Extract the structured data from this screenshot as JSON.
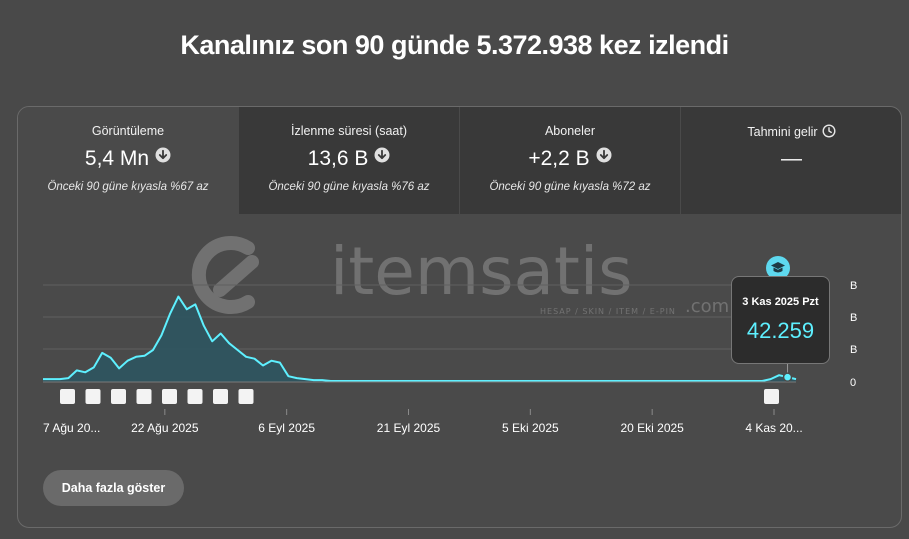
{
  "headline": "Kanalınız son 90 günde 5.372.938 kez izlendi",
  "tabs": [
    {
      "label": "Görüntüleme",
      "value": "5,4 Mn",
      "note": "Önceki 90 güne kıyasla %67 az",
      "trend_icon": "arrow-down-circle-icon"
    },
    {
      "label": "İzlenme süresi (saat)",
      "value": "13,6 B",
      "note": "Önceki 90 güne kıyasla %76 az",
      "trend_icon": "arrow-down-circle-icon"
    },
    {
      "label": "Aboneler",
      "value": "+2,2 B",
      "note": "Önceki 90 güne kıyasla %72 az",
      "trend_icon": "arrow-down-circle-icon"
    },
    {
      "label": "Tahmini gelir",
      "value": "—",
      "note": "",
      "trend_icon": "clock-icon"
    }
  ],
  "watermark": {
    "brand": "itemsatis",
    "tld": ".com",
    "tagline": "HESAP / SKIN / ITEM / E-PIN"
  },
  "tooltip": {
    "date": "3 Kas 2025 Pzt",
    "value": "42.259"
  },
  "more_button": "Daha fazla göster",
  "colors": {
    "line": "#5ef0ff",
    "area": "#2e5560",
    "tooltip_value": "#5ef0ff"
  },
  "chart_data": {
    "type": "area",
    "title": "",
    "xlabel": "",
    "ylabel": "",
    "x_tick_labels": [
      "7 Ağu 20...",
      "22 Ağu 2025",
      "6 Eyl 2025",
      "21 Eyl 2025",
      "5 Eki 2025",
      "20 Eki 2025",
      "4 Kas 20..."
    ],
    "y_tick_labels": [
      "B",
      "B",
      "B",
      "0"
    ],
    "grid": true,
    "series": [
      {
        "values": [
          3,
          3,
          3,
          4,
          12,
          10,
          15,
          30,
          25,
          14,
          22,
          26,
          27,
          33,
          48,
          70,
          88,
          75,
          80,
          58,
          42,
          50,
          40,
          33,
          26,
          24,
          17,
          22,
          20,
          6,
          4,
          3,
          2,
          2,
          1,
          1,
          1,
          1,
          1,
          1,
          1,
          1,
          1,
          1,
          1,
          1,
          1,
          1,
          1,
          1,
          1,
          1,
          1,
          1,
          1,
          1,
          1,
          1,
          1,
          1,
          1,
          1,
          1,
          1,
          1,
          1,
          1,
          1,
          1,
          1,
          1,
          1,
          1,
          1,
          1,
          1,
          1,
          1,
          1,
          1,
          1,
          1,
          1,
          1,
          1,
          1,
          3,
          7,
          5,
          3
        ]
      }
    ],
    "video_markers": 8,
    "highlight_markers": 1
  }
}
